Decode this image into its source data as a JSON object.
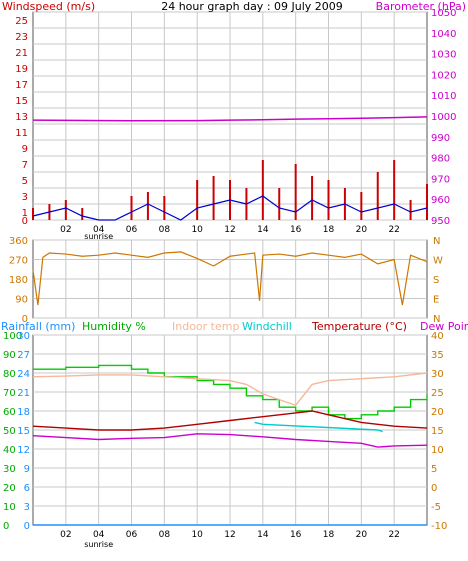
{
  "colors": {
    "windspeed": "#cc0000",
    "barometer": "#cc00cc",
    "wind_direction": "#cc7700",
    "rainfall": "#1e90ff",
    "humidity": "#00cc00",
    "indoor_temp": "#f4b89a",
    "windchill": "#00cccc",
    "temperature": "#b00000",
    "dew_point": "#cc00cc",
    "right_axis_orange": "#cc7700",
    "panel_bg": "#ffffff",
    "grid": "#c8c8c8"
  },
  "panels": {
    "top": {
      "left_title": "Windspeed (m/s)",
      "center_title": "24 hour graph day : 09 July 2009",
      "right_title": "Barometer (hPa)",
      "left_ticks": [
        "25",
        "23",
        "21",
        "19",
        "17",
        "15",
        "13",
        "11",
        "9",
        "7",
        "5",
        "3",
        "1",
        "0"
      ],
      "right_ticks": [
        "1050",
        "1040",
        "1030",
        "1020",
        "1010",
        "1000",
        "990",
        "980",
        "970",
        "960",
        "950"
      ],
      "x_labels": [
        "02",
        "04",
        "06",
        "08",
        "10",
        "12",
        "14",
        "16",
        "18",
        "20",
        "22"
      ],
      "x_sublabel": "sunrise"
    },
    "middle": {
      "left_ticks": [
        "360",
        "270",
        "180",
        "90",
        "0"
      ],
      "right_labels": [
        "N",
        "W",
        "S",
        "E",
        "N"
      ]
    },
    "bottom": {
      "titles": {
        "rainfall": "Rainfall (mm)",
        "humidity": "Humidity %",
        "indoor_temp": "Indoor temp",
        "windchill": "Windchill",
        "temperature": "Temperature (°C)",
        "dew_point": "Dew Point"
      },
      "rain_ticks": [
        "30",
        "27",
        "24",
        "21",
        "18",
        "15",
        "12",
        "9",
        "6",
        "3",
        "0"
      ],
      "humidity_ticks": [
        "100",
        "90",
        "80",
        "70",
        "60",
        "50",
        "40",
        "30",
        "20",
        "10",
        "0"
      ],
      "temp_ticks": [
        "40",
        "35",
        "30",
        "25",
        "20",
        "15",
        "10",
        "5",
        "0",
        "-5",
        "-10"
      ],
      "x_labels": [
        "02",
        "04",
        "06",
        "08",
        "10",
        "12",
        "14",
        "16",
        "18",
        "20",
        "22"
      ],
      "x_sublabel": "sunrise"
    }
  },
  "chart_data": [
    {
      "type": "line",
      "title": "24 hour graph day : 09 July 2009",
      "series": [
        {
          "name": "Windspeed (m/s)",
          "axis": "left",
          "unit": "m/s",
          "x": [
            0,
            1,
            2,
            3,
            4,
            5,
            6,
            7,
            8,
            9,
            10,
            11,
            12,
            13,
            14,
            15,
            16,
            17,
            18,
            19,
            20,
            21,
            22,
            23,
            24
          ],
          "values": [
            0.5,
            1,
            1.5,
            0.5,
            0,
            0,
            1,
            2,
            1,
            0,
            1.5,
            2,
            2.5,
            2,
            3,
            1.5,
            1,
            2.5,
            1.5,
            2,
            1,
            1.5,
            2,
            1,
            1.5
          ]
        },
        {
          "name": "Windspeed gust",
          "axis": "left",
          "unit": "m/s",
          "x": [
            0,
            1,
            2,
            3,
            4,
            5,
            6,
            7,
            8,
            9,
            10,
            11,
            12,
            13,
            14,
            15,
            16,
            17,
            18,
            19,
            20,
            21,
            22,
            23,
            24
          ],
          "values": [
            1.5,
            2,
            2.5,
            1.5,
            0,
            0,
            3,
            3.5,
            3,
            0,
            5,
            5.5,
            5,
            4,
            7.5,
            4,
            7,
            5.5,
            5,
            4,
            3.5,
            6,
            7.5,
            2.5,
            4.5
          ]
        },
        {
          "name": "Barometer (hPa)",
          "axis": "right",
          "unit": "hPa",
          "x": [
            0,
            6,
            10,
            12,
            14,
            16,
            18,
            20,
            22,
            24
          ],
          "values": [
            998,
            997.7,
            997.8,
            998,
            998.2,
            998.5,
            998.7,
            998.9,
            999.2,
            999.6
          ]
        }
      ],
      "left_ylim": [
        0,
        25
      ],
      "right_ylim": [
        950,
        1050
      ],
      "x_ticks": [
        "02",
        "04",
        "06",
        "08",
        "10",
        "12",
        "14",
        "16",
        "18",
        "20",
        "22"
      ],
      "grid": true
    },
    {
      "type": "line",
      "series": [
        {
          "name": "Wind direction",
          "unit": "degrees",
          "x": [
            0,
            0.3,
            0.6,
            1,
            2,
            3,
            4,
            5,
            6,
            7,
            8,
            9,
            10,
            11,
            12,
            13,
            13.5,
            13.8,
            14,
            15,
            16,
            17,
            18,
            19,
            20,
            21,
            22,
            22.5,
            23,
            24
          ],
          "values": [
            220,
            60,
            280,
            300,
            295,
            285,
            290,
            300,
            290,
            280,
            300,
            305,
            275,
            240,
            285,
            295,
            300,
            80,
            290,
            295,
            285,
            300,
            290,
            280,
            295,
            250,
            270,
            60,
            290,
            260
          ]
        }
      ],
      "ylim": [
        0,
        360
      ],
      "y_ticks": [
        0,
        90,
        180,
        270,
        360
      ],
      "grid": true
    },
    {
      "type": "line",
      "series": [
        {
          "name": "Rainfall (mm)",
          "axis": "rain",
          "unit": "mm",
          "x": [
            0,
            24
          ],
          "values": [
            0,
            0
          ]
        },
        {
          "name": "Humidity %",
          "axis": "humidity",
          "unit": "%",
          "x": [
            0,
            1,
            2,
            3,
            4,
            5,
            6,
            7,
            8,
            9,
            10,
            11,
            12,
            13,
            14,
            15,
            16,
            17,
            18,
            19,
            20,
            21,
            22,
            23,
            24
          ],
          "values": [
            82,
            82,
            83,
            83,
            84,
            84,
            82,
            80,
            78,
            78,
            76,
            74,
            72,
            68,
            66,
            62,
            60,
            62,
            58,
            56,
            58,
            60,
            62,
            66,
            68
          ]
        },
        {
          "name": "Indoor temp",
          "axis": "temp",
          "unit": "°C",
          "x": [
            0,
            2,
            4,
            6,
            8,
            10,
            12,
            13,
            14,
            15,
            16,
            17,
            18,
            20,
            22,
            24
          ],
          "values": [
            29,
            29.2,
            29.5,
            29.5,
            29,
            28.5,
            28,
            27,
            24.5,
            23,
            21.5,
            27,
            28,
            28.5,
            29,
            30
          ]
        },
        {
          "name": "Windchill",
          "axis": "temp",
          "unit": "°C",
          "x": [
            13.5,
            14,
            21,
            21.3
          ],
          "values": [
            17,
            16.5,
            15,
            14.6
          ]
        },
        {
          "name": "Temperature (°C)",
          "axis": "temp",
          "unit": "°C",
          "x": [
            0,
            2,
            4,
            6,
            8,
            10,
            12,
            14,
            16,
            17,
            18,
            20,
            22,
            24
          ],
          "values": [
            16,
            15.5,
            15,
            15,
            15.5,
            16.5,
            17.5,
            18.5,
            19.5,
            20,
            19,
            17,
            16,
            15.5
          ]
        },
        {
          "name": "Dew Point",
          "axis": "temp",
          "unit": "°C",
          "x": [
            0,
            2,
            4,
            6,
            8,
            10,
            12,
            14,
            16,
            18,
            20,
            21,
            22,
            24
          ],
          "values": [
            13.5,
            13,
            12.5,
            12.8,
            13,
            14,
            13.8,
            13.2,
            12.5,
            12,
            11.5,
            10.5,
            10.8,
            11
          ]
        }
      ],
      "rain_ylim": [
        0,
        30
      ],
      "humidity_ylim": [
        0,
        100
      ],
      "temp_ylim": [
        -10,
        40
      ],
      "x_ticks": [
        "02",
        "04",
        "06",
        "08",
        "10",
        "12",
        "14",
        "16",
        "18",
        "20",
        "22"
      ],
      "grid": true
    }
  ]
}
